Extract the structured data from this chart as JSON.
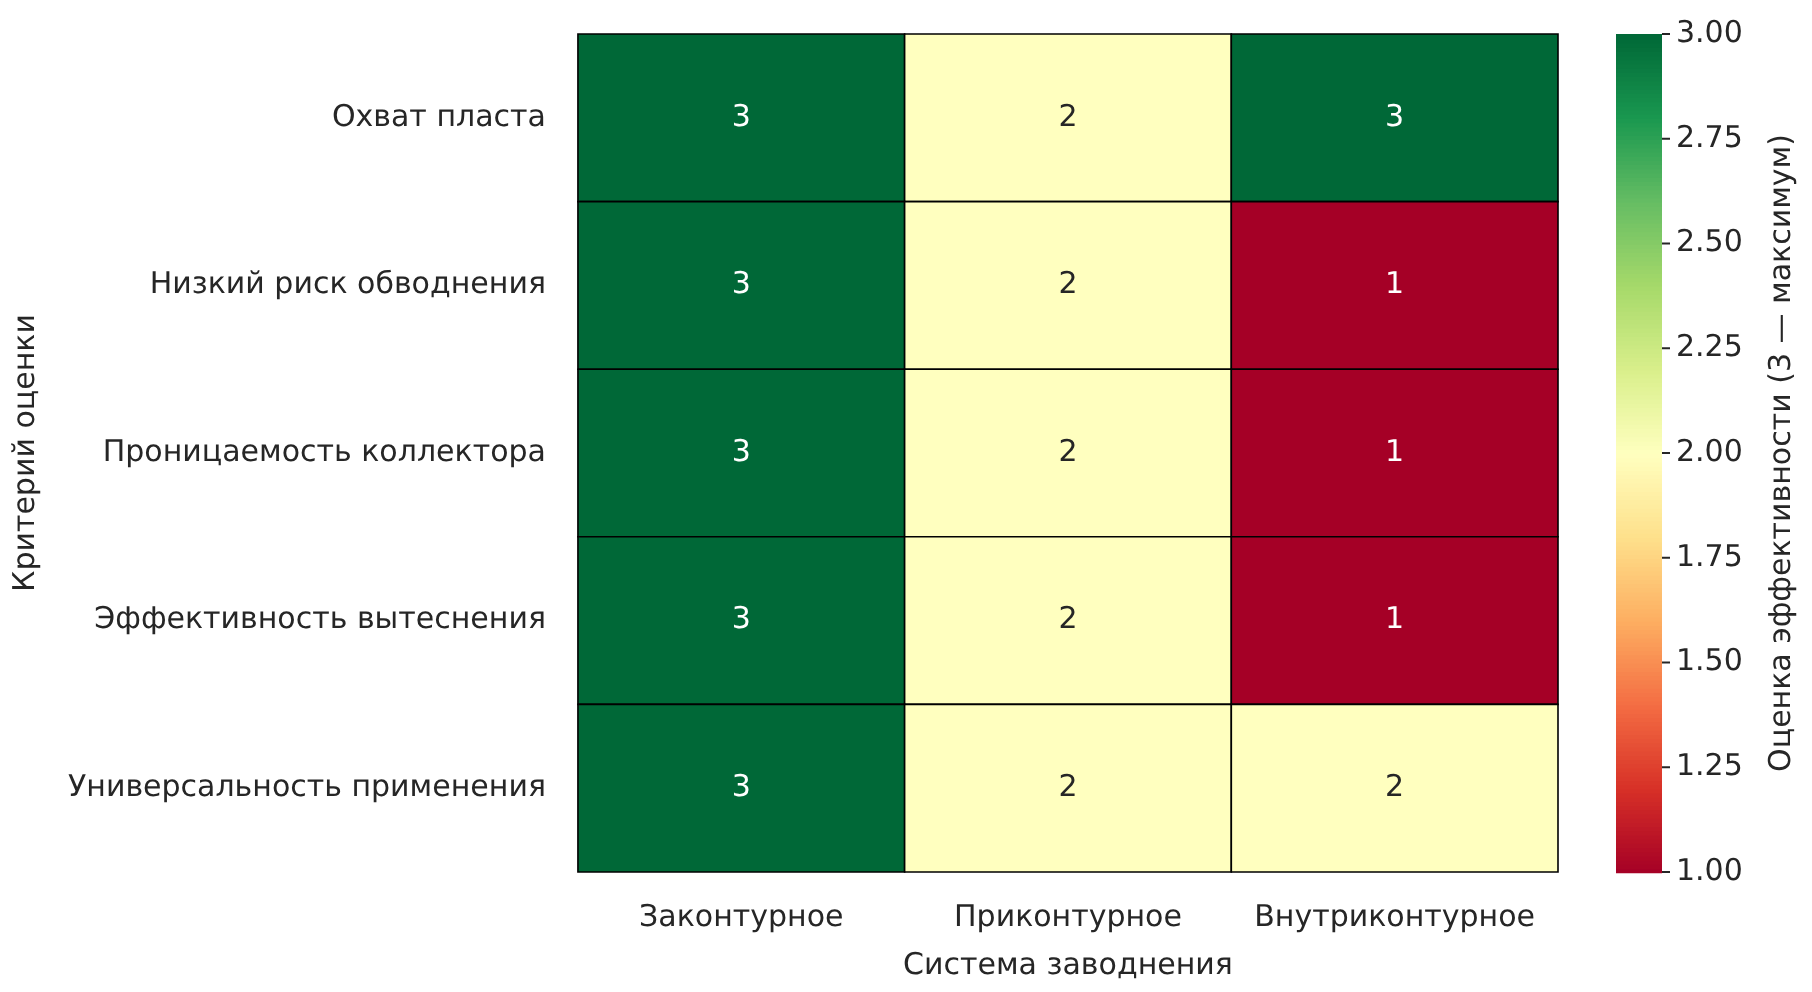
{
  "chart_data": {
    "type": "heatmap",
    "xlabel": "Система заводнения",
    "ylabel": "Критерий оценки",
    "clabel": "Оценка эффективности (3 — максимум)",
    "categories": [
      "Законтурное",
      "Приконтурное",
      "Внутриконтурное"
    ],
    "y_categories": [
      "Охват пласта",
      "Низкий риск обводнения",
      "Проницаемость коллектора",
      "Эффективность вытеснения",
      "Универсальность применения"
    ],
    "cells": [
      [
        3,
        2,
        3
      ],
      [
        3,
        2,
        1
      ],
      [
        3,
        2,
        1
      ],
      [
        3,
        2,
        1
      ],
      [
        3,
        2,
        2
      ]
    ],
    "data_labels": true,
    "clim": [
      1,
      3
    ],
    "cticks": [
      {
        "value": 1,
        "label": "1.00"
      },
      {
        "value": 1.25,
        "label": "1.25"
      },
      {
        "value": 1.5,
        "label": "1.50"
      },
      {
        "value": 1.75,
        "label": "1.75"
      },
      {
        "value": 2,
        "label": "2.00"
      },
      {
        "value": 2.25,
        "label": "2.25"
      },
      {
        "value": 2.5,
        "label": "2.50"
      },
      {
        "value": 2.75,
        "label": "2.75"
      },
      {
        "value": 3,
        "label": "3.00"
      }
    ]
  }
}
